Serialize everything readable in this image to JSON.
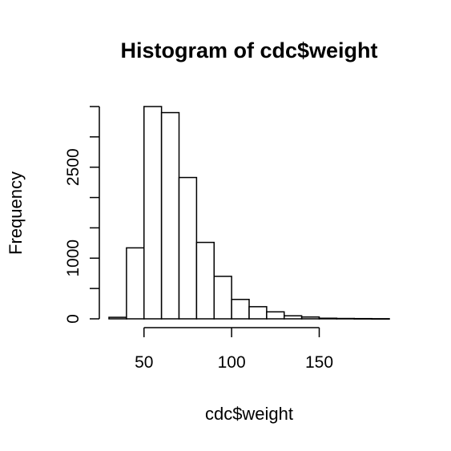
{
  "chart_data": {
    "type": "histogram",
    "title": "Histogram of cdc$weight",
    "xlabel": "cdc$weight",
    "ylabel": "Frequency",
    "xlim": [
      30,
      190
    ],
    "ylim": [
      0,
      3500
    ],
    "x_ticks": [
      50,
      100,
      150
    ],
    "y_ticks": [
      0,
      500,
      1000,
      1500,
      2000,
      2500,
      3000,
      3500
    ],
    "y_tick_labels": [
      {
        "value": 0,
        "label": "0"
      },
      {
        "value": 1000,
        "label": "1000"
      },
      {
        "value": 2500,
        "label": "2500"
      }
    ],
    "bins": [
      {
        "start": 30,
        "end": 40,
        "count": 25
      },
      {
        "start": 40,
        "end": 50,
        "count": 1170
      },
      {
        "start": 50,
        "end": 60,
        "count": 3500
      },
      {
        "start": 60,
        "end": 70,
        "count": 3400
      },
      {
        "start": 70,
        "end": 80,
        "count": 2330
      },
      {
        "start": 80,
        "end": 90,
        "count": 1260
      },
      {
        "start": 90,
        "end": 100,
        "count": 700
      },
      {
        "start": 100,
        "end": 110,
        "count": 320
      },
      {
        "start": 110,
        "end": 120,
        "count": 200
      },
      {
        "start": 120,
        "end": 130,
        "count": 115
      },
      {
        "start": 130,
        "end": 140,
        "count": 50
      },
      {
        "start": 140,
        "end": 150,
        "count": 30
      },
      {
        "start": 150,
        "end": 160,
        "count": 10
      },
      {
        "start": 160,
        "end": 170,
        "count": 6
      },
      {
        "start": 170,
        "end": 180,
        "count": 4
      },
      {
        "start": 180,
        "end": 190,
        "count": 2
      }
    ]
  }
}
